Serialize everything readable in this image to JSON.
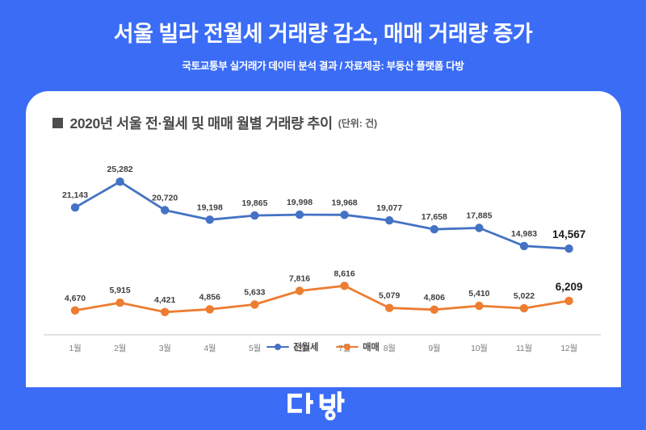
{
  "header": {
    "title": "서울 빌라 전월세 거래량 감소, 매매 거래량 증가",
    "subtitle": "국토교통부 실거래가 데이터 분석 결과 / 자료제공: 부동산 플랫폼 다방"
  },
  "card": {
    "heading": "2020년 서울 전·월세 및 매매 월별 거래량 추이",
    "unit_label": "(단위: 건)"
  },
  "footer": {
    "logo_text": "다방"
  },
  "colors": {
    "background": "#3B6CF6",
    "card": "#FFFFFF",
    "heading_text": "#4A4A4A",
    "jeonwolse_line": "#4472C4",
    "maemae_line": "#ED7D31",
    "data_label": "#3F3F3F",
    "emphasis_label": "#1A1A1A",
    "axis_line": "#D9D9D9",
    "axis_label": "#7F7F7F"
  },
  "chart_data": {
    "type": "line",
    "title": "2020년 서울 전·월세 및 매매 월별 거래량 추이",
    "unit": "건",
    "categories": [
      "1월",
      "2월",
      "3월",
      "4월",
      "5월",
      "6월",
      "7월",
      "8월",
      "9월",
      "10월",
      "11월",
      "12월"
    ],
    "series": [
      {
        "name": "전월세",
        "color": "#4472C4",
        "values": [
          21143,
          25282,
          20720,
          19198,
          19865,
          19998,
          19968,
          19077,
          17658,
          17885,
          14983,
          14567
        ]
      },
      {
        "name": "매매",
        "color": "#ED7D31",
        "values": [
          4670,
          5915,
          4421,
          4856,
          5633,
          7816,
          8616,
          5079,
          4806,
          5410,
          5022,
          6209
        ]
      }
    ],
    "ylim": [
      0,
      27500
    ],
    "grid": false,
    "legend_position": "bottom",
    "data_labels": true,
    "last_point_emphasized": true
  }
}
